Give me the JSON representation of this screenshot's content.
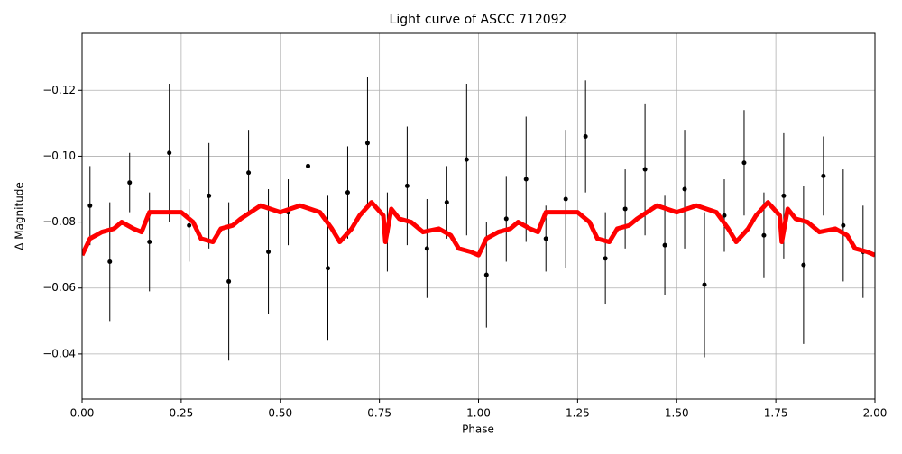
{
  "chart_data": {
    "type": "scatter",
    "title": "Light curve of ASCC 712092",
    "xlabel": "Phase",
    "ylabel": "Δ Magnitude",
    "xlim": [
      0,
      2
    ],
    "ylim": [
      -0.0263,
      -0.1373
    ],
    "xticks": [
      {
        "value": 0,
        "label": "0.00"
      },
      {
        "value": 0.25,
        "label": "0.25"
      },
      {
        "value": 0.5,
        "label": "0.50"
      },
      {
        "value": 0.75,
        "label": "0.75"
      },
      {
        "value": 1,
        "label": "1.00"
      },
      {
        "value": 1.25,
        "label": "1.25"
      },
      {
        "value": 1.5,
        "label": "1.50"
      },
      {
        "value": 1.75,
        "label": "1.75"
      },
      {
        "value": 2,
        "label": "2.00"
      }
    ],
    "yticks": [
      {
        "value": -0.12,
        "label": "−0.12"
      },
      {
        "value": -0.1,
        "label": "−0.10"
      },
      {
        "value": -0.08,
        "label": "−0.08"
      },
      {
        "value": -0.06,
        "label": "−0.06"
      },
      {
        "value": -0.04,
        "label": "−0.04"
      }
    ],
    "grid": true,
    "points": {
      "color": "#000000",
      "x": [
        0.02,
        0.07,
        0.12,
        0.17,
        0.22,
        0.27,
        0.32,
        0.37,
        0.42,
        0.47,
        0.52,
        0.57,
        0.62,
        0.67,
        0.72,
        0.77,
        0.82,
        0.87,
        0.92,
        0.97,
        1.02,
        1.07,
        1.12,
        1.17,
        1.22,
        1.27,
        1.32,
        1.37,
        1.42,
        1.47,
        1.52,
        1.57,
        1.62,
        1.67,
        1.72,
        1.77,
        1.82,
        1.87,
        1.92,
        1.97
      ],
      "y": [
        -0.085,
        -0.068,
        -0.092,
        -0.074,
        -0.101,
        -0.079,
        -0.088,
        -0.062,
        -0.095,
        -0.071,
        -0.083,
        -0.097,
        -0.066,
        -0.089,
        -0.104,
        -0.077,
        -0.091,
        -0.072,
        -0.086,
        -0.099,
        -0.064,
        -0.081,
        -0.093,
        -0.075,
        -0.087,
        -0.106,
        -0.069,
        -0.084,
        -0.096,
        -0.073,
        -0.09,
        -0.061,
        -0.082,
        -0.098,
        -0.076,
        -0.088,
        -0.067,
        -0.094,
        -0.079,
        -0.071
      ],
      "err": [
        0.012,
        0.018,
        0.009,
        0.015,
        0.021,
        0.011,
        0.016,
        0.024,
        0.013,
        0.019,
        0.01,
        0.017,
        0.022,
        0.014,
        0.02,
        0.012,
        0.018,
        0.015,
        0.011,
        0.023,
        0.016,
        0.013,
        0.019,
        0.01,
        0.021,
        0.017,
        0.014,
        0.012,
        0.02,
        0.015,
        0.018,
        0.022,
        0.011,
        0.016,
        0.013,
        0.019,
        0.024,
        0.012,
        0.017,
        0.014
      ]
    },
    "curve": {
      "color": "#ff0000",
      "x": [
        0,
        0.02,
        0.05,
        0.08,
        0.1,
        0.13,
        0.15,
        0.17,
        0.2,
        0.25,
        0.28,
        0.3,
        0.33,
        0.35,
        0.38,
        0.4,
        0.45,
        0.5,
        0.55,
        0.6,
        0.63,
        0.65,
        0.68,
        0.7,
        0.73,
        0.76,
        0.765,
        0.78,
        0.8,
        0.83,
        0.86,
        0.9,
        0.93,
        0.95,
        0.98,
        1,
        1.02,
        1.05,
        1.08,
        1.1,
        1.13,
        1.15,
        1.17,
        1.2,
        1.25,
        1.28,
        1.3,
        1.33,
        1.35,
        1.38,
        1.4,
        1.45,
        1.5,
        1.55,
        1.6,
        1.63,
        1.65,
        1.68,
        1.7,
        1.73,
        1.76,
        1.765,
        1.78,
        1.8,
        1.83,
        1.86,
        1.9,
        1.93,
        1.95,
        1.98,
        2
      ],
      "y": [
        -0.07,
        -0.075,
        -0.077,
        -0.078,
        -0.08,
        -0.078,
        -0.077,
        -0.083,
        -0.083,
        -0.083,
        -0.08,
        -0.075,
        -0.074,
        -0.078,
        -0.079,
        -0.081,
        -0.085,
        -0.083,
        -0.085,
        -0.083,
        -0.078,
        -0.074,
        -0.078,
        -0.082,
        -0.086,
        -0.082,
        -0.074,
        -0.084,
        -0.081,
        -0.08,
        -0.077,
        -0.078,
        -0.076,
        -0.072,
        -0.071,
        -0.07,
        -0.075,
        -0.077,
        -0.078,
        -0.08,
        -0.078,
        -0.077,
        -0.083,
        -0.083,
        -0.083,
        -0.08,
        -0.075,
        -0.074,
        -0.078,
        -0.079,
        -0.081,
        -0.085,
        -0.083,
        -0.085,
        -0.083,
        -0.078,
        -0.074,
        -0.078,
        -0.082,
        -0.086,
        -0.082,
        -0.074,
        -0.084,
        -0.081,
        -0.08,
        -0.077,
        -0.078,
        -0.076,
        -0.072,
        -0.071,
        -0.07
      ]
    }
  }
}
